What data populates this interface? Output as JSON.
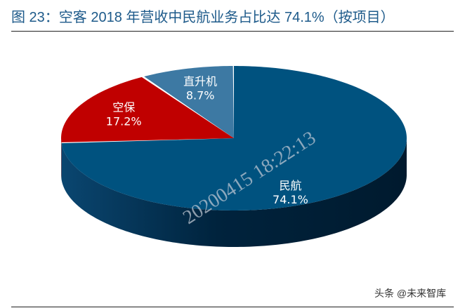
{
  "title": "图 23：空客 2018 年营收中民航业务占比达 74.1%（按项目）",
  "chart_data": {
    "type": "pie",
    "style": "3d",
    "start": "top",
    "direction": "counterclockwise",
    "categories": [
      "直升机",
      "空保",
      "民航"
    ],
    "values": [
      8.7,
      17.2,
      74.1
    ],
    "labels": [
      "8.7%",
      "17.2%",
      "74.1%"
    ],
    "colors": [
      "#3d79a3",
      "#c00000",
      "#00527f"
    ],
    "side_colors": [
      "#1f4a6a",
      "#7a0000",
      "#00233d"
    ],
    "legend": "none"
  },
  "watermark": "20200415 18:22:13",
  "source": "头条 @未来智库"
}
